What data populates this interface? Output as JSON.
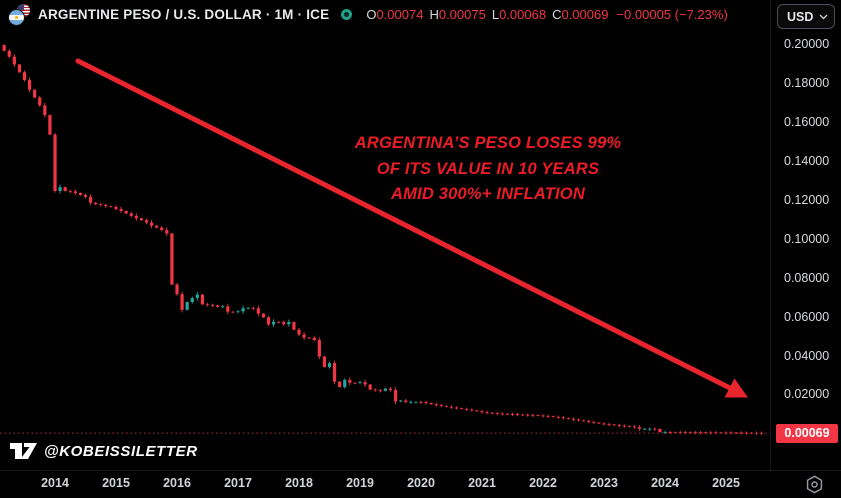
{
  "header": {
    "symbol_title": "ARGENTINE PESO / U.S. DOLLAR · 1M · ICE",
    "ohlc": {
      "o_label": "O",
      "o": "0.00074",
      "h_label": "H",
      "h": "0.00075",
      "l_label": "L",
      "l": "0.00068",
      "c_label": "C",
      "c": "0.00069",
      "change": "−0.00005 (−7.23%)"
    },
    "currency_button": "USD"
  },
  "annotation": {
    "line1": "ARGENTINA’S PESO LOSES 99%",
    "line2": "OF ITS VALUE IN 10 YEARS",
    "line3": "AMID 300%+ INFLATION"
  },
  "watermark": "@KOBEISSILETTER",
  "price_scale": {
    "ticks": [
      "0.20000",
      "0.18000",
      "0.16000",
      "0.14000",
      "0.12000",
      "0.10000",
      "0.08000",
      "0.06000",
      "0.04000",
      "0.02000"
    ],
    "last_price_label": "0.00069"
  },
  "time_scale": {
    "years": [
      "2014",
      "2015",
      "2016",
      "2017",
      "2018",
      "2019",
      "2020",
      "2021",
      "2022",
      "2023",
      "2024",
      "2025"
    ]
  },
  "colors": {
    "up": "#26a69a",
    "down": "#f23645",
    "annotation_red": "#ec1c27",
    "arrow_red": "#e8252c",
    "price_line": "#a83338",
    "price_label_bg": "#f23645",
    "axis_text": "#d8dadd",
    "background": "#000000"
  },
  "chart_data": {
    "type": "candlestick",
    "title": "ARGENTINE PESO / U.S. DOLLAR, monthly, ICE",
    "unit": "USD per ARS",
    "interval": "1M",
    "start_month": "2013-03",
    "end_month": "2025-08",
    "ylim": [
      0,
      0.21
    ],
    "y_ticks": [
      0.2,
      0.18,
      0.16,
      0.14,
      0.12,
      0.1,
      0.08,
      0.06,
      0.04,
      0.02
    ],
    "x_years": [
      2014,
      2015,
      2016,
      2017,
      2018,
      2019,
      2020,
      2021,
      2022,
      2023,
      2024,
      2025
    ],
    "last_price": 0.00069,
    "current_ohlc": {
      "open": 0.00074,
      "high": 0.00075,
      "low": 0.00068,
      "close": 0.00069,
      "change": -5e-05,
      "change_pct": -7.23
    },
    "first_open": 0.2,
    "monthly_closes": [
      0.197,
      0.194,
      0.19,
      0.186,
      0.182,
      0.177,
      0.173,
      0.169,
      0.164,
      0.154,
      0.125,
      0.127,
      0.125,
      0.1248,
      0.124,
      0.123,
      0.122,
      0.119,
      0.1182,
      0.1178,
      0.1172,
      0.1168,
      0.1158,
      0.1148,
      0.1135,
      0.1122,
      0.111,
      0.11,
      0.1088,
      0.1072,
      0.1062,
      0.105,
      0.1032,
      0.077,
      0.072,
      0.064,
      0.068,
      0.07,
      0.0718,
      0.0668,
      0.0665,
      0.0663,
      0.0655,
      0.0658,
      0.063,
      0.0629,
      0.0632,
      0.0648,
      0.065,
      0.0648,
      0.062,
      0.0601,
      0.0565,
      0.0578,
      0.0577,
      0.0566,
      0.0577,
      0.0538,
      0.0513,
      0.0497,
      0.0496,
      0.0485,
      0.04,
      0.0346,
      0.0366,
      0.0271,
      0.0243,
      0.028,
      0.0265,
      0.0264,
      0.0268,
      0.0256,
      0.023,
      0.0226,
      0.0224,
      0.0235,
      0.0228,
      0.0169,
      0.0174,
      0.0167,
      0.0167,
      0.0167,
      0.0166,
      0.0161,
      0.0155,
      0.015,
      0.0146,
      0.0142,
      0.0138,
      0.0135,
      0.0131,
      0.0127,
      0.0123,
      0.0119,
      0.0114,
      0.0111,
      0.0109,
      0.0107,
      0.0106,
      0.0105,
      0.0104,
      0.0102,
      0.0101,
      0.01,
      0.0099,
      0.0097,
      0.0095,
      0.0093,
      0.009,
      0.0087,
      0.0084,
      0.008,
      0.0076,
      0.0072,
      0.0068,
      0.0064,
      0.006,
      0.0056,
      0.0053,
      0.0051,
      0.0048,
      0.0045,
      0.0043,
      0.004,
      0.0037,
      0.0029,
      0.0029,
      0.0029,
      0.0028,
      0.0012,
      0.00121,
      0.00119,
      0.00117,
      0.00115,
      0.00112,
      0.0011,
      0.00108,
      0.00106,
      0.00103,
      0.00101,
      0.001,
      0.00097,
      0.00096,
      0.00094,
      0.00093,
      0.00088,
      0.00085,
      0.00083,
      0.00079,
      0.00069
    ]
  }
}
